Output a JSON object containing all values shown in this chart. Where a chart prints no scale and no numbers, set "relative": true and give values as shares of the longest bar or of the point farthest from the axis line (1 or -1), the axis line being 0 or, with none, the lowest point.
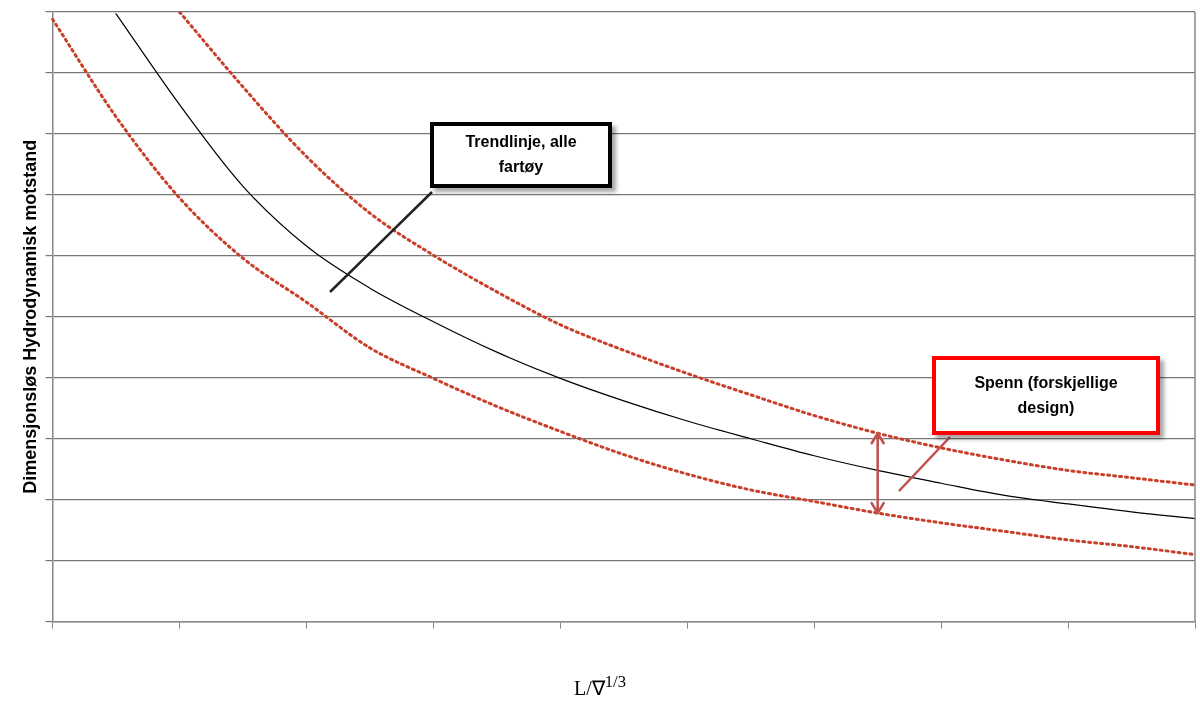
{
  "chart_data": {
    "type": "line",
    "relative": true,
    "xlabel": "L/∇$^{1/3}$",
    "ylabel": "Dimensjonsløs Hydrodynamisk motstand",
    "categories": [
      null,
      null,
      null,
      null,
      null,
      null,
      null,
      null,
      null,
      null,
      null,
      null,
      null,
      null,
      null,
      null,
      null,
      null,
      null
    ],
    "grid": "y",
    "legend": false,
    "marker": "none",
    "series": [
      {
        "color": "#000000",
        "line_style": "solid",
        "values": [
          null,
          0.997,
          0.848,
          0.714,
          0.616,
          0.547,
          0.492,
          0.442,
          0.399,
          0.362,
          0.329,
          0.3,
          0.272,
          0.248,
          0.227,
          0.207,
          0.193,
          0.18,
          0.169
        ]
      },
      {
        "color": "#c9402a",
        "line_style": "dotted",
        "values": [
          null,
          null,
          1,
          0.877,
          0.763,
          0.67,
          0.601,
          0.541,
          0.487,
          0.445,
          0.407,
          0.372,
          0.338,
          0.309,
          0.285,
          0.265,
          0.248,
          0.236,
          0.224
        ]
      },
      {
        "color": "#c9402a",
        "line_style": "dotted",
        "values": [
          0.988,
          0.828,
          0.695,
          0.596,
          0.524,
          0.449,
          0.399,
          0.353,
          0.312,
          0.274,
          0.242,
          0.216,
          0.197,
          0.178,
          0.162,
          0.148,
          0.134,
          0.123,
          0.11
        ]
      }
    ],
    "annotations": [
      "Trendlinje, alle fartøy",
      "Spenn (forskjellige design)"
    ]
  }
}
